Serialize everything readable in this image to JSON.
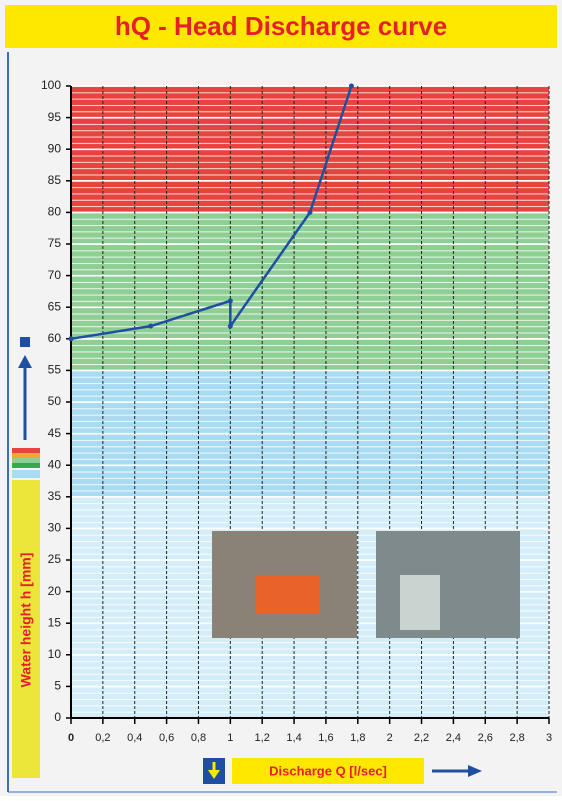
{
  "chart_data": {
    "type": "line",
    "title": "hQ - Head Discharge curve",
    "x_label": "Discharge Q [l/sec]",
    "y_label": "Water height h [mm]",
    "x": [
      0,
      0.5,
      1,
      1,
      1.5,
      1.76
    ],
    "series": [
      {
        "color": "#1f4fa0",
        "values": [
          60,
          62,
          66,
          62,
          80,
          100
        ]
      }
    ],
    "xlim": [
      0,
      3
    ],
    "ylim": [
      0,
      100
    ],
    "xticks": [
      0,
      {
        "value": 0.2,
        "label": "0,2"
      },
      {
        "value": 0.4,
        "label": "0,4"
      },
      {
        "value": 0.6,
        "label": "0,6"
      },
      {
        "value": 0.8,
        "label": "0,8"
      },
      1,
      {
        "value": 1.2,
        "label": "1,2"
      },
      {
        "value": 1.4,
        "label": "1,4"
      },
      {
        "value": 1.6,
        "label": "1,6"
      },
      {
        "value": 1.8,
        "label": "1,8"
      },
      2,
      {
        "value": 2.2,
        "label": "2,2"
      },
      {
        "value": 2.4,
        "label": "2,4"
      },
      {
        "value": 2.6,
        "label": "2,6"
      },
      {
        "value": 2.8,
        "label": "2,8"
      },
      3
    ],
    "yticks": [
      0,
      5,
      10,
      15,
      20,
      25,
      30,
      35,
      40,
      45,
      50,
      55,
      60,
      65,
      70,
      75,
      80,
      85,
      90,
      95,
      100
    ],
    "bands": [
      {
        "from": 0,
        "to": 35,
        "color": "#d4eef9"
      },
      {
        "from": 35,
        "to": 55,
        "color": "#a9dcf2"
      },
      {
        "from": 55,
        "to": 80,
        "color": "#8fcf95"
      },
      {
        "from": 80,
        "to": 100,
        "color": "#e8443f"
      }
    ],
    "grid": true
  }
}
